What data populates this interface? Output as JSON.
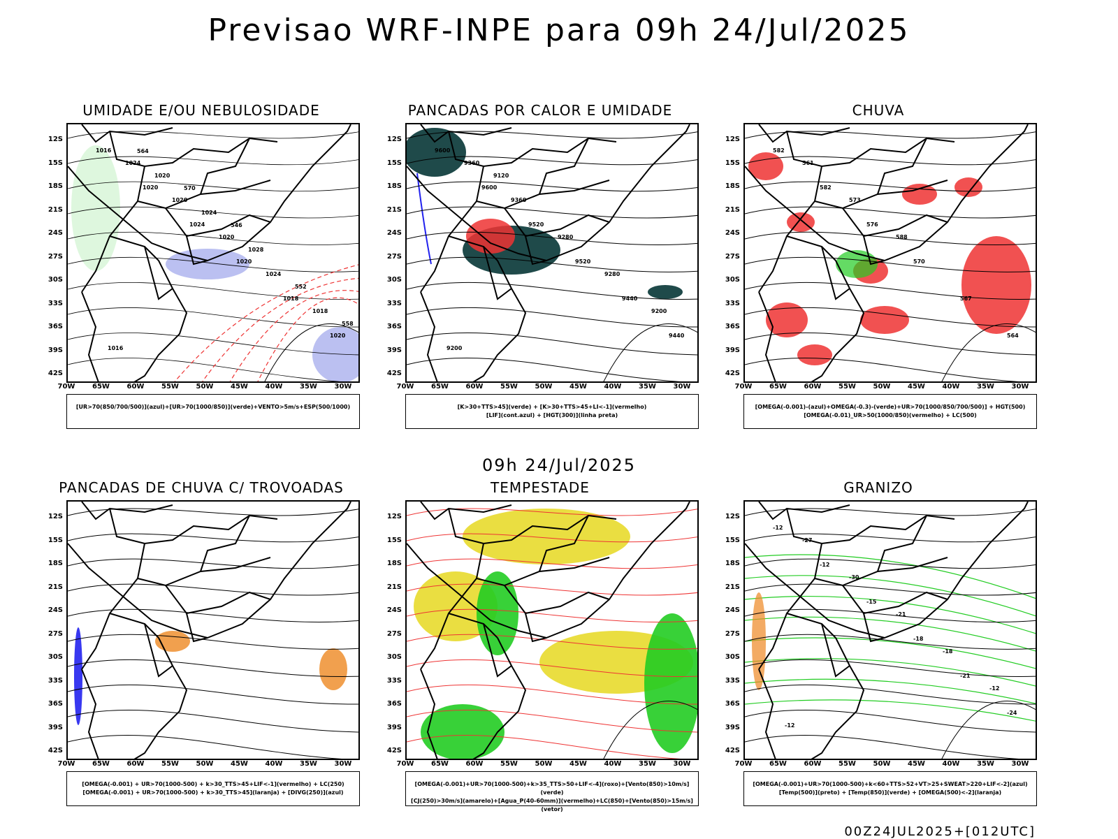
{
  "title": "Previsao WRF-INPE  para 09h 24/Jul/2025",
  "subtitle": "09h 24/Jul/2025",
  "footer": "00Z24JUL2025+[012UTC]",
  "lat_labels": [
    "12S",
    "15S",
    "18S",
    "21S",
    "24S",
    "27S",
    "30S",
    "33S",
    "36S",
    "39S",
    "42S"
  ],
  "lon_labels": [
    "70W",
    "65W",
    "60W",
    "55W",
    "50W",
    "45W",
    "40W",
    "35W",
    "30W"
  ],
  "panels": [
    {
      "title": "UMIDADE E/OU NEBULOSIDADE",
      "legend1": "[UR>70(850/700/500)](azul)+[UR>70(1000/850)](verde)+VENTO>5m/s+ESP(500/1000)",
      "legend2": "",
      "contour_labels": [
        "1016",
        "1020",
        "1024",
        "1020",
        "1018",
        "1020",
        "1024",
        "1020",
        "1020",
        "1024",
        "1018",
        "1016",
        "1020",
        "1024",
        "1028",
        "552",
        "558",
        "564",
        "570",
        "546"
      ]
    },
    {
      "title": "PANCADAS POR CALOR E UMIDADE",
      "legend1": "[K>30+TTS>45](verde) + [K>30+TTS>45+LI<-1](vermelho)",
      "legend2": "[LIF](cont.azul) + [HGT(300)](linha preta)",
      "contour_labels": [
        "9600",
        "9600",
        "9520",
        "9520",
        "9440",
        "9440",
        "9360",
        "9360",
        "9280",
        "9280",
        "9200",
        "9200",
        "9120"
      ]
    },
    {
      "title": "CHUVA",
      "legend1": "[OMEGA(-0.001)-(azul)+OMEGA(-0.3)-(verde)+UR>70(1000/850/700/500)] + HGT(500)",
      "legend2": "[OMEGA(-0.01)_UR>50(1000/850)(vermelho) + LC(500)",
      "contour_labels": [
        "582",
        "582",
        "576",
        "570",
        "567",
        "564",
        "561",
        "573",
        "588"
      ]
    },
    {
      "title": "PANCADAS DE CHUVA C/ TROVOADAS",
      "legend1": "[OMEGA(-0.001) + UR>70(1000-500) + k>30_TTS>45+LIF<-1](vermelho) + LC(250)",
      "legend2": "[OMEGA(-0.001) + UR>70(1000-500) + k>30_TTS>45](laranja) + [DIVG(250)](azul)",
      "contour_labels": []
    },
    {
      "title": "TEMPESTADE",
      "legend1": "[OMEGA(-0.001)+UR>70(1000-500)+k>35_TTS>50+LIF<-4](roxo)+[Vento(850)>10m/s](verde)",
      "legend2": "[CJ(250)>30m/s](amarelo)+[Agua_P(40-60mm)](vermelho)+LC(850)+[Vento(850)>15m/s](vetor)",
      "contour_labels": []
    },
    {
      "title": "GRANIZO",
      "legend1": "[OMEGA(-0.001)+UR>70(1000-500)+k<60+TTS>52+VT>25+SWEAT>220+LIF<-2](azul)",
      "legend2": "[Temp(500)](preto) + [Temp(850)](verde) + [OMEGA(500)<-2](laranja)",
      "contour_labels": [
        "-12",
        "-12",
        "-15",
        "-18",
        "-21",
        "-24",
        "-27",
        "-30",
        "-21",
        "-18",
        "-12",
        "-12"
      ]
    }
  ],
  "colors": {
    "blue": "#2222ee",
    "green": "#22cc22",
    "red": "#ee3333",
    "orange": "#ee8822",
    "yellow": "#e6d820",
    "teal": "#1f4a4a",
    "lavender": "#aab0ee"
  }
}
